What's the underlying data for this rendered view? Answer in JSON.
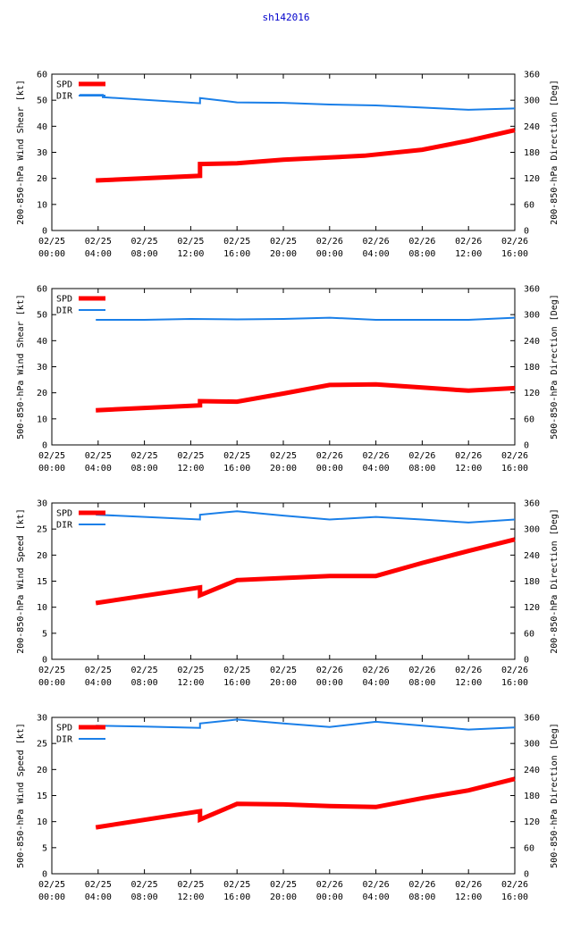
{
  "title": "sh142016",
  "colors": {
    "spd": "#ff0000",
    "dir": "#1a7fe8",
    "axis": "#000000",
    "title": "#0000cc"
  },
  "x_ticks": [
    [
      "02/25",
      "00:00"
    ],
    [
      "02/25",
      "04:00"
    ],
    [
      "02/25",
      "08:00"
    ],
    [
      "02/25",
      "12:00"
    ],
    [
      "02/25",
      "16:00"
    ],
    [
      "02/25",
      "20:00"
    ],
    [
      "02/26",
      "00:00"
    ],
    [
      "02/26",
      "04:00"
    ],
    [
      "02/26",
      "08:00"
    ],
    [
      "02/26",
      "12:00"
    ],
    [
      "02/26",
      "16:00"
    ]
  ],
  "chart_data": [
    {
      "type": "line",
      "ylabel": "200-850-hPa Wind Shear [kt]",
      "y2label": "200-850-hPa Direction [Deg]",
      "ylim": [
        0,
        60
      ],
      "yticks": [
        0,
        10,
        20,
        30,
        40,
        50,
        60
      ],
      "y2lim": [
        0,
        360
      ],
      "y2ticks": [
        0,
        60,
        120,
        180,
        240,
        300,
        360
      ],
      "x_range_hours": [
        0,
        40
      ],
      "series": [
        {
          "name": "SPD",
          "axis": "left",
          "x": [
            3.8,
            12.8,
            12.8,
            16,
            20,
            24,
            27,
            32,
            36,
            40
          ],
          "y": [
            19.2,
            21,
            25.5,
            25.8,
            27.2,
            28,
            28.7,
            31,
            34.5,
            38.5
          ]
        },
        {
          "name": "DIR",
          "axis": "right",
          "x": [
            2.4,
            4.4,
            4.4,
            12.8,
            12.8,
            16,
            20,
            24,
            28,
            32,
            36,
            40
          ],
          "y": [
            312,
            312,
            307,
            293,
            305,
            295,
            294,
            290,
            288,
            283,
            278,
            281
          ]
        }
      ]
    },
    {
      "type": "line",
      "ylabel": "500-850-hPa Wind Shear [kt]",
      "y2label": "500-850-hPa Direction [Deg]",
      "ylim": [
        0,
        60
      ],
      "yticks": [
        0,
        10,
        20,
        30,
        40,
        50,
        60
      ],
      "y2lim": [
        0,
        360
      ],
      "y2ticks": [
        0,
        60,
        120,
        180,
        240,
        300,
        360
      ],
      "x_range_hours": [
        0,
        40
      ],
      "series": [
        {
          "name": "SPD",
          "axis": "left",
          "x": [
            3.8,
            12.8,
            12.8,
            16,
            20,
            24,
            28,
            32,
            36,
            40
          ],
          "y": [
            13.3,
            15.2,
            16.8,
            16.6,
            19.7,
            23,
            23.2,
            22,
            20.8,
            21.8
          ]
        },
        {
          "name": "DIR",
          "axis": "right",
          "x": [
            3.8,
            8,
            12,
            16,
            20,
            24,
            28,
            32,
            36,
            40
          ],
          "y": [
            288,
            288,
            290,
            289,
            290,
            293,
            288,
            288,
            288,
            293
          ]
        }
      ]
    },
    {
      "type": "line",
      "ylabel": "200-850-hPa Wind Speed [kt]",
      "y2label": "200-850-hPa Direction [Deg]",
      "ylim": [
        0,
        30
      ],
      "yticks": [
        0,
        5,
        10,
        15,
        20,
        25,
        30
      ],
      "y2lim": [
        0,
        360
      ],
      "y2ticks": [
        0,
        60,
        120,
        180,
        240,
        300,
        360
      ],
      "x_range_hours": [
        0,
        40
      ],
      "series": [
        {
          "name": "SPD",
          "axis": "left",
          "x": [
            3.8,
            12.8,
            12.8,
            16,
            20,
            24,
            28,
            32,
            36,
            40
          ],
          "y": [
            10.8,
            13.8,
            12.3,
            15.2,
            15.6,
            16,
            16,
            18.5,
            20.8,
            23
          ]
        },
        {
          "name": "DIR",
          "axis": "right",
          "x": [
            3.8,
            12.8,
            12.8,
            16,
            20,
            24,
            28,
            32,
            36,
            40
          ],
          "y": [
            333,
            322,
            333,
            341,
            331,
            322,
            328,
            322,
            315,
            322
          ]
        }
      ]
    },
    {
      "type": "line",
      "ylabel": "500-850-hPa Wind Speed [kt]",
      "y2label": "500-850-hPa Direction [Deg]",
      "ylim": [
        0,
        30
      ],
      "yticks": [
        0,
        5,
        10,
        15,
        20,
        25,
        30
      ],
      "y2lim": [
        0,
        360
      ],
      "y2ticks": [
        0,
        60,
        120,
        180,
        240,
        300,
        360
      ],
      "x_range_hours": [
        0,
        40
      ],
      "series": [
        {
          "name": "SPD",
          "axis": "left",
          "x": [
            3.8,
            12.8,
            12.8,
            16,
            20,
            24,
            28,
            32,
            36,
            40
          ],
          "y": [
            8.9,
            12,
            10.4,
            13.4,
            13.3,
            13,
            12.8,
            14.5,
            16,
            18.2
          ]
        },
        {
          "name": "DIR",
          "axis": "right",
          "x": [
            3.8,
            8,
            12.8,
            12.8,
            16,
            20,
            24,
            28,
            32,
            36,
            40
          ],
          "y": [
            341,
            339,
            336,
            346,
            355,
            346,
            338,
            350,
            341,
            332,
            337
          ]
        }
      ]
    }
  ]
}
